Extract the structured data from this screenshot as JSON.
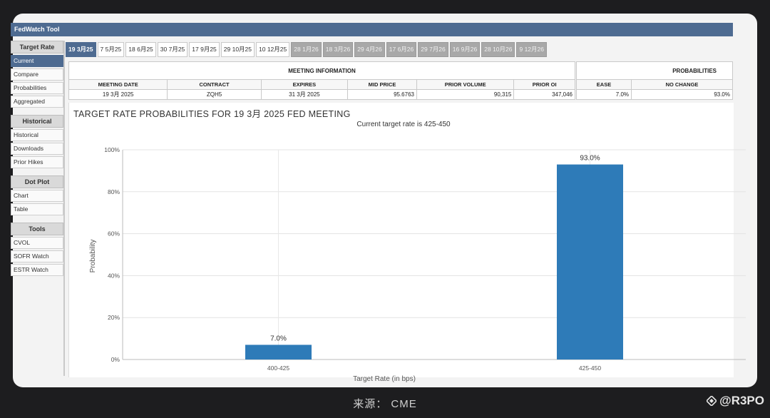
{
  "window": {
    "title": "FedWatch Tool"
  },
  "sidebar": {
    "sections": [
      {
        "heading": "Target Rate",
        "items": [
          "Current",
          "Compare",
          "Probabilities",
          "Aggregated"
        ]
      },
      {
        "heading": "Historical",
        "items": [
          "Historical",
          "Downloads",
          "Prior Hikes"
        ]
      },
      {
        "heading": "Dot Plot",
        "items": [
          "Chart",
          "Table"
        ]
      },
      {
        "heading": "Tools",
        "items": [
          "CVOL",
          "SOFR Watch",
          "ESTR Watch"
        ]
      }
    ],
    "active_item": "Current"
  },
  "tabs": [
    {
      "label": "19 3月25",
      "state": "active"
    },
    {
      "label": "7 5月25",
      "state": "normal"
    },
    {
      "label": "18 6月25",
      "state": "normal"
    },
    {
      "label": "30 7月25",
      "state": "normal"
    },
    {
      "label": "17 9月25",
      "state": "normal"
    },
    {
      "label": "29 10月25",
      "state": "normal"
    },
    {
      "label": "10 12月25",
      "state": "normal"
    },
    {
      "label": "28 1月26",
      "state": "dim"
    },
    {
      "label": "18 3月26",
      "state": "dim"
    },
    {
      "label": "29 4月26",
      "state": "dim"
    },
    {
      "label": "17 6月26",
      "state": "dim"
    },
    {
      "label": "29 7月26",
      "state": "dim"
    },
    {
      "label": "16 9月26",
      "state": "dim"
    },
    {
      "label": "28 10月26",
      "state": "dim"
    },
    {
      "label": "9 12月26",
      "state": "dim"
    }
  ],
  "meeting_info": {
    "caption": "MEETING INFORMATION",
    "headers": [
      "MEETING DATE",
      "CONTRACT",
      "EXPIRES",
      "MID PRICE",
      "PRIOR VOLUME",
      "PRIOR OI"
    ],
    "row": [
      "19 3月 2025",
      "ZQH5",
      "31 3月 2025",
      "95.6763",
      "90,315",
      "347,046"
    ]
  },
  "probabilities": {
    "caption": "PROBABILITIES",
    "headers": [
      "EASE",
      "NO CHANGE"
    ],
    "row": [
      "7.0%",
      "93.0%"
    ]
  },
  "chart_data": {
    "type": "bar",
    "title": "TARGET RATE PROBABILITIES FOR 19 3月 2025 FED MEETING",
    "subtitle": "Current target rate is 425-450",
    "categories": [
      "400-425",
      "425-450"
    ],
    "values": [
      7.0,
      93.0
    ],
    "value_labels": [
      "7.0%",
      "93.0%"
    ],
    "xlabel": "Target Rate (in bps)",
    "ylabel": "Probability",
    "ylim": [
      0,
      100
    ],
    "yticks": [
      "0%",
      "20%",
      "40%",
      "60%",
      "80%",
      "100%"
    ],
    "grid": true,
    "bar_color": "#2e7bb8"
  },
  "footer": {
    "caption": "来源： CME",
    "watermark": "@R3PO"
  }
}
